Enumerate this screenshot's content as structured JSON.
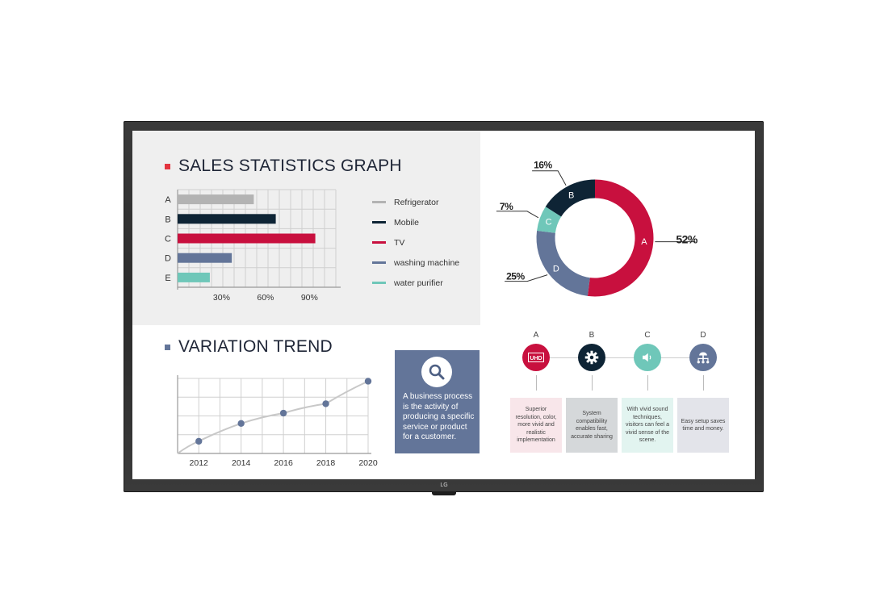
{
  "brand": {
    "logo_text": "LG"
  },
  "sales": {
    "title": "SALES STATISTICS GRAPH",
    "title_marker_color": "#e3343f",
    "chart_data": {
      "type": "bar",
      "orientation": "horizontal",
      "categories": [
        "A",
        "B",
        "C",
        "D",
        "E"
      ],
      "values": [
        52,
        67,
        94,
        37,
        22
      ],
      "colors": [
        "#b3b3b3",
        "#0e2435",
        "#c8103e",
        "#637599",
        "#6fc7b9"
      ],
      "xlim": [
        0,
        108
      ],
      "xticks": [
        30,
        60,
        90
      ],
      "xtick_labels": [
        "30%",
        "60%",
        "90%"
      ],
      "grid": true
    },
    "legend": [
      {
        "label": "Refrigerator",
        "color": "#b3b3b3"
      },
      {
        "label": "Mobile",
        "color": "#0e2435"
      },
      {
        "label": "TV",
        "color": "#c8103e"
      },
      {
        "label": "washing machine",
        "color": "#637599"
      },
      {
        "label": "water purifier",
        "color": "#6fc7b9"
      }
    ]
  },
  "donut": {
    "chart_data": {
      "type": "pie",
      "style": "donut",
      "slices": [
        {
          "label": "A",
          "value": 52,
          "pct_label": "52%",
          "color": "#c8103e"
        },
        {
          "label": "D",
          "value": 25,
          "pct_label": "25%",
          "color": "#637599"
        },
        {
          "label": "C",
          "value": 7,
          "pct_label": "7%",
          "color": "#6fc7b9"
        },
        {
          "label": "B",
          "value": 16,
          "pct_label": "16%",
          "color": "#0e2435"
        }
      ]
    }
  },
  "trend": {
    "title": "VARIATION TREND",
    "title_marker_color": "#637599",
    "chart_data": {
      "type": "line",
      "x": [
        2011,
        2012,
        2014,
        2016,
        2018,
        2020
      ],
      "y": [
        0,
        1.3,
        3.2,
        4.3,
        5.3,
        7.7
      ],
      "marker_points": [
        2012,
        2014,
        2016,
        2018,
        2020
      ],
      "xticks": [
        2012,
        2014,
        2016,
        2018,
        2020
      ],
      "xlim": [
        2011,
        2020
      ],
      "ylim": [
        0,
        8
      ],
      "line_color": "#c8c8c8",
      "marker_color": "#637599",
      "grid": true
    }
  },
  "caption": {
    "text": "A business process is the activity of producing a specific service or product for a customer.",
    "icon": "magnifier-icon"
  },
  "features": [
    {
      "letter": "A",
      "icon": "uhd-icon",
      "icon_text": "UHD",
      "color": "#c8103e",
      "card_bg": "#f8e6ea",
      "text": "Superior resolution, color, more vivid and realistic implementation"
    },
    {
      "letter": "B",
      "icon": "gear-icon",
      "icon_text": "",
      "color": "#0e2435",
      "card_bg": "#d5d8da",
      "text": "System compatibility enables fast, accurate sharing"
    },
    {
      "letter": "C",
      "icon": "speaker-icon",
      "icon_text": "",
      "color": "#6fc7b9",
      "card_bg": "#e2f4f0",
      "text": "With vivid sound techniques, visitors can feel a vivid sense of the scene."
    },
    {
      "letter": "D",
      "icon": "network-icon",
      "icon_text": "",
      "color": "#637599",
      "card_bg": "#e3e4ea",
      "text": "Easy setup saves time and money."
    }
  ]
}
